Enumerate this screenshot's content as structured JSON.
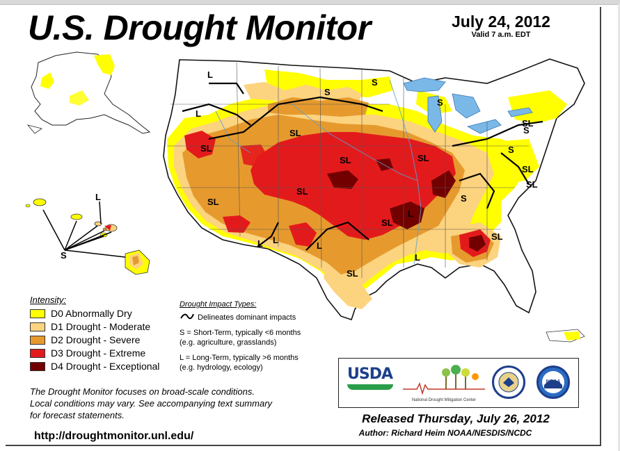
{
  "header": {
    "title": "U.S. Drought Monitor",
    "date": "July 24, 2012",
    "valid": "Valid 7 a.m. EDT"
  },
  "legend": {
    "title": "Intensity:",
    "items": [
      {
        "label": "D0 Abnormally Dry",
        "color": "#ffff00"
      },
      {
        "label": "D1 Drought - Moderate",
        "color": "#fcd37f"
      },
      {
        "label": "D2 Drought - Severe",
        "color": "#e69a2e"
      },
      {
        "label": "D3 Drought - Extreme",
        "color": "#e31a1c"
      },
      {
        "label": "D4 Drought - Exceptional",
        "color": "#730000"
      }
    ]
  },
  "impacts": {
    "title": "Drought Impact Types:",
    "delineates": "Delineates dominant impacts",
    "short_term_1": "S = Short-Term, typically <6 months",
    "short_term_2": "(e.g. agriculture, grasslands)",
    "long_term_1": "L = Long-Term, typically >6 months",
    "long_term_2": "(e.g. hydrology, ecology)"
  },
  "map_labels": {
    "l1": "L",
    "s1": "S",
    "s2": "S",
    "l2": "L",
    "sl1": "SL",
    "sl2": "SL",
    "sl3": "SL",
    "s3": "S",
    "sl4": "SL",
    "sl5": "SL",
    "s4": "S",
    "sl6": "SL",
    "sl7": "SL",
    "sl8": "SL",
    "l3": "L",
    "l4": "L",
    "l5": "L",
    "sl9": "SL",
    "sl10": "SL",
    "l6": "L",
    "sl11": "SL",
    "s5": "S",
    "s6": "S",
    "sl12": "SL",
    "l7": "L",
    "hi_s": "S",
    "hi_l": "L"
  },
  "footer": {
    "note_1": "The Drought Monitor focuses on broad-scale conditions.",
    "note_2": "Local conditions may vary. See accompanying text summary",
    "note_3": "for forecast statements.",
    "url": "http://droughtmonitor.unl.edu/",
    "released": "Released Thursday, July 26, 2012",
    "author": "Author: Richard Heim NOAA/NESDIS/NCDC"
  },
  "logos": {
    "usda": "USDA",
    "ndmc": "National Drought Mitigation Center",
    "noaa": "NOAA"
  },
  "colors": {
    "d0": "#ffff00",
    "d1": "#fcd37f",
    "d2": "#e69a2e",
    "d3": "#e31a1c",
    "d4": "#730000",
    "water": "#7ab8e8",
    "land": "#ffffff",
    "border": "#000000"
  }
}
